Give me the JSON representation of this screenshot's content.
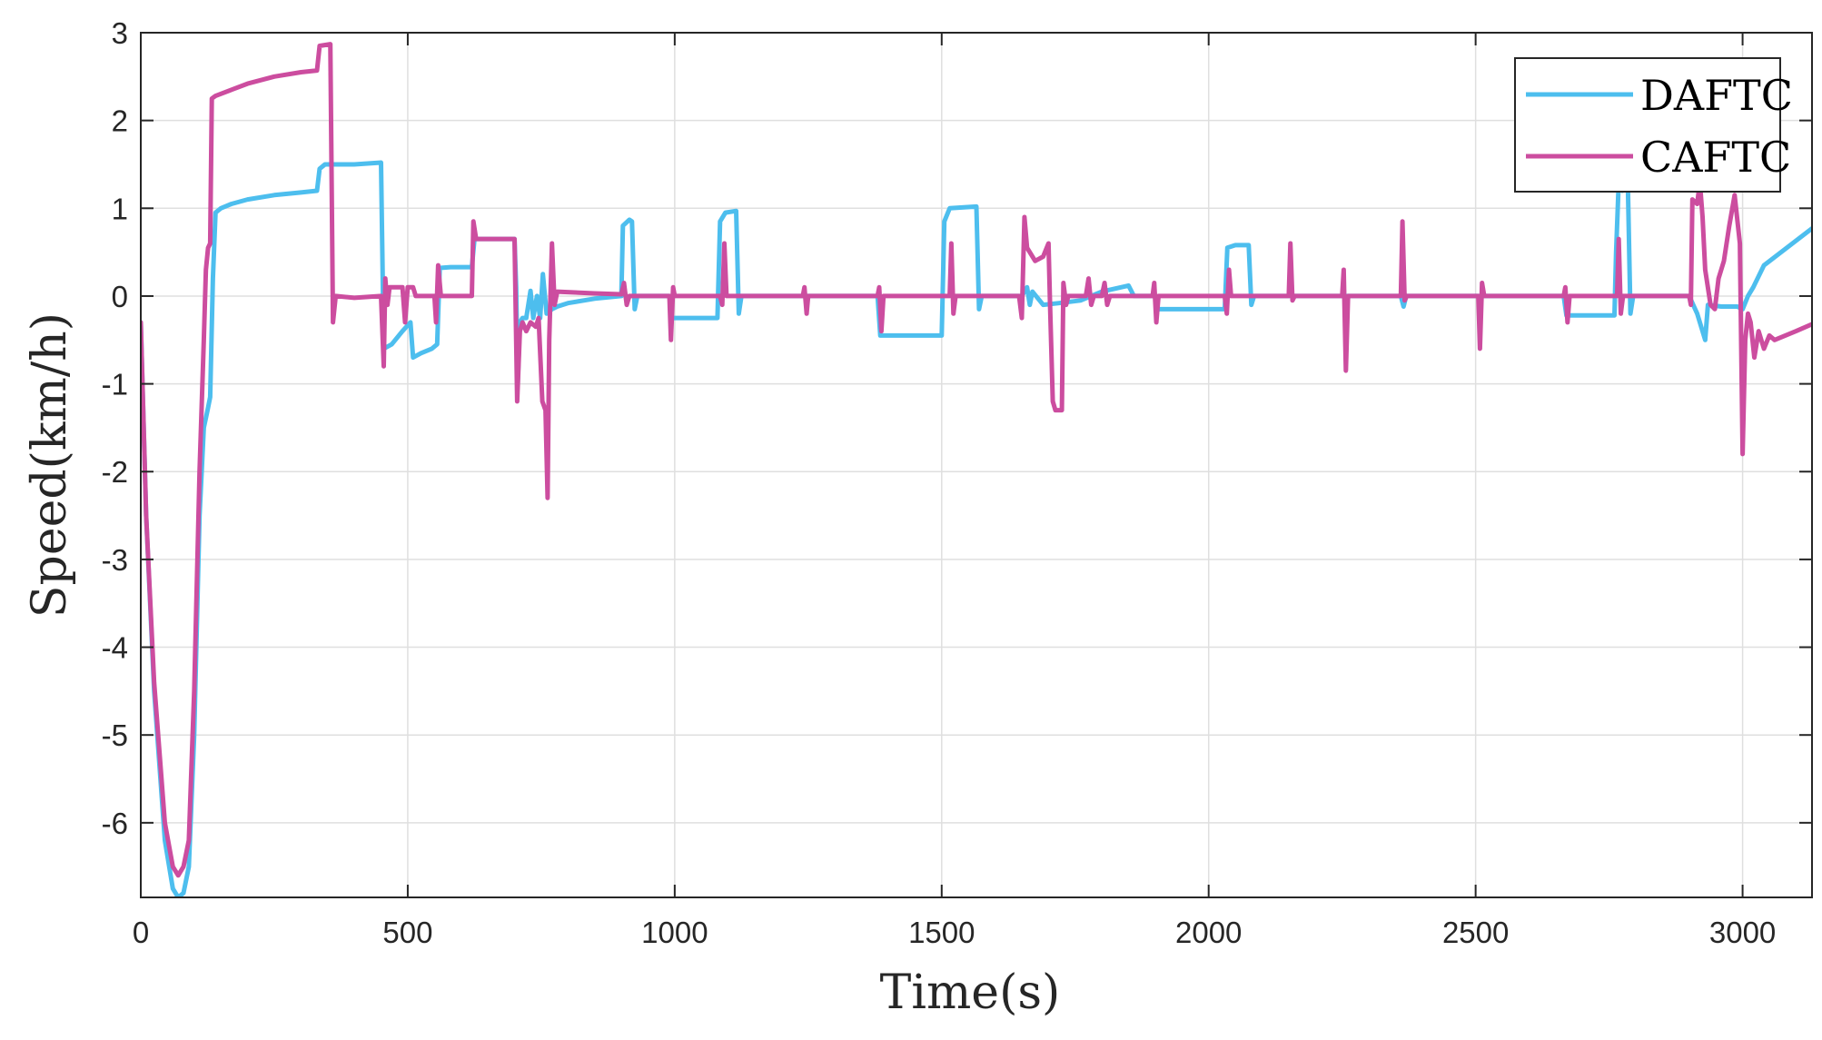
{
  "chart_data": {
    "type": "line",
    "title": "",
    "xlabel": "Time(s)",
    "ylabel": "Speed(km/h)",
    "xlim": [
      0,
      3130
    ],
    "ylim": [
      -6.85,
      3
    ],
    "xticks": [
      0,
      500,
      1000,
      1500,
      2000,
      2500,
      3000
    ],
    "yticks": [
      3,
      2,
      1,
      0,
      -1,
      -2,
      -3,
      -4,
      -5,
      -6
    ],
    "grid": true,
    "legend_position": "top-right",
    "series": [
      {
        "name": "DAFTC",
        "color": "#4dbeee",
        "points": [
          [
            0,
            -0.3
          ],
          [
            10,
            -2.5
          ],
          [
            25,
            -4.5
          ],
          [
            45,
            -6.2
          ],
          [
            60,
            -6.75
          ],
          [
            70,
            -6.85
          ],
          [
            80,
            -6.8
          ],
          [
            90,
            -6.5
          ],
          [
            100,
            -5
          ],
          [
            110,
            -2.5
          ],
          [
            118,
            -1.5
          ],
          [
            125,
            -1.3
          ],
          [
            130,
            -1.15
          ],
          [
            135,
            0.2
          ],
          [
            140,
            0.95
          ],
          [
            150,
            1.0
          ],
          [
            170,
            1.05
          ],
          [
            200,
            1.1
          ],
          [
            250,
            1.15
          ],
          [
            300,
            1.18
          ],
          [
            330,
            1.2
          ],
          [
            335,
            1.45
          ],
          [
            345,
            1.5
          ],
          [
            400,
            1.5
          ],
          [
            450,
            1.52
          ],
          [
            455,
            -0.6
          ],
          [
            470,
            -0.55
          ],
          [
            490,
            -0.4
          ],
          [
            505,
            -0.3
          ],
          [
            510,
            -0.7
          ],
          [
            525,
            -0.65
          ],
          [
            545,
            -0.6
          ],
          [
            555,
            -0.55
          ],
          [
            560,
            0.32
          ],
          [
            580,
            0.33
          ],
          [
            620,
            0.33
          ],
          [
            625,
            0.65
          ],
          [
            700,
            0.65
          ],
          [
            703,
            0.1
          ],
          [
            706,
            -1.0
          ],
          [
            710,
            -0.3
          ],
          [
            715,
            -0.25
          ],
          [
            722,
            -0.25
          ],
          [
            730,
            0.06
          ],
          [
            735,
            -0.25
          ],
          [
            742,
            0.0
          ],
          [
            748,
            -0.25
          ],
          [
            753,
            0.25
          ],
          [
            760,
            -0.2
          ],
          [
            770,
            -0.15
          ],
          [
            780,
            -0.12
          ],
          [
            800,
            -0.08
          ],
          [
            850,
            -0.03
          ],
          [
            900,
            0.0
          ],
          [
            903,
            0.8
          ],
          [
            915,
            0.87
          ],
          [
            920,
            0.85
          ],
          [
            925,
            -0.15
          ],
          [
            930,
            0.0
          ],
          [
            990,
            0.0
          ],
          [
            995,
            -0.25
          ],
          [
            1080,
            -0.25
          ],
          [
            1085,
            0.85
          ],
          [
            1095,
            0.95
          ],
          [
            1115,
            0.97
          ],
          [
            1120,
            -0.2
          ],
          [
            1125,
            0.0
          ],
          [
            1380,
            0.0
          ],
          [
            1385,
            -0.45
          ],
          [
            1500,
            -0.45
          ],
          [
            1505,
            0.85
          ],
          [
            1515,
            1.0
          ],
          [
            1565,
            1.02
          ],
          [
            1570,
            -0.15
          ],
          [
            1575,
            0.0
          ],
          [
            1650,
            0.0
          ],
          [
            1660,
            0.1
          ],
          [
            1665,
            -0.1
          ],
          [
            1670,
            0.05
          ],
          [
            1690,
            -0.1
          ],
          [
            1720,
            -0.08
          ],
          [
            1760,
            -0.05
          ],
          [
            1800,
            0.05
          ],
          [
            1850,
            0.12
          ],
          [
            1860,
            0.0
          ],
          [
            1900,
            0.0
          ],
          [
            1905,
            -0.15
          ],
          [
            2030,
            -0.15
          ],
          [
            2035,
            0.55
          ],
          [
            2050,
            0.58
          ],
          [
            2075,
            0.58
          ],
          [
            2080,
            -0.1
          ],
          [
            2085,
            0.0
          ],
          [
            2290,
            0.0
          ],
          [
            2300,
            0.0
          ],
          [
            2360,
            0.0
          ],
          [
            2365,
            -0.12
          ],
          [
            2370,
            0.0
          ],
          [
            2665,
            0.0
          ],
          [
            2670,
            -0.22
          ],
          [
            2760,
            -0.22
          ],
          [
            2763,
            0.5
          ],
          [
            2768,
            1.3
          ],
          [
            2775,
            1.2
          ],
          [
            2785,
            1.3
          ],
          [
            2790,
            -0.2
          ],
          [
            2795,
            0.0
          ],
          [
            2900,
            0.0
          ],
          [
            2915,
            -0.2
          ],
          [
            2930,
            -0.5
          ],
          [
            2935,
            -0.1
          ],
          [
            2960,
            -0.12
          ],
          [
            2990,
            -0.12
          ],
          [
            3000,
            -0.15
          ],
          [
            3010,
            0.0
          ],
          [
            3020,
            0.1
          ],
          [
            3040,
            0.35
          ],
          [
            3130,
            0.77
          ]
        ]
      },
      {
        "name": "CAFTC",
        "color": "#cc4d9f",
        "points": [
          [
            0,
            -0.3
          ],
          [
            10,
            -2.5
          ],
          [
            25,
            -4.4
          ],
          [
            45,
            -6.0
          ],
          [
            60,
            -6.5
          ],
          [
            70,
            -6.6
          ],
          [
            80,
            -6.5
          ],
          [
            90,
            -6.2
          ],
          [
            100,
            -4.5
          ],
          [
            110,
            -2
          ],
          [
            118,
            -0.5
          ],
          [
            122,
            0.3
          ],
          [
            126,
            0.55
          ],
          [
            130,
            0.6
          ],
          [
            133,
            2.25
          ],
          [
            140,
            2.28
          ],
          [
            170,
            2.35
          ],
          [
            200,
            2.42
          ],
          [
            250,
            2.5
          ],
          [
            300,
            2.55
          ],
          [
            330,
            2.57
          ],
          [
            335,
            2.85
          ],
          [
            355,
            2.87
          ],
          [
            360,
            -0.3
          ],
          [
            365,
            0.0
          ],
          [
            400,
            -0.02
          ],
          [
            450,
            0.0
          ],
          [
            455,
            -0.8
          ],
          [
            458,
            0.2
          ],
          [
            462,
            -0.1
          ],
          [
            466,
            0.1
          ],
          [
            490,
            0.1
          ],
          [
            495,
            -0.3
          ],
          [
            500,
            0.1
          ],
          [
            510,
            0.1
          ],
          [
            515,
            0.0
          ],
          [
            550,
            0.0
          ],
          [
            553,
            -0.3
          ],
          [
            557,
            0.35
          ],
          [
            562,
            0.0
          ],
          [
            620,
            0.0
          ],
          [
            623,
            0.85
          ],
          [
            628,
            0.65
          ],
          [
            690,
            0.65
          ],
          [
            700,
            0.65
          ],
          [
            705,
            -1.2
          ],
          [
            710,
            -0.4
          ],
          [
            715,
            -0.3
          ],
          [
            722,
            -0.4
          ],
          [
            730,
            -0.3
          ],
          [
            740,
            -0.35
          ],
          [
            745,
            -0.25
          ],
          [
            752,
            -1.2
          ],
          [
            758,
            -1.3
          ],
          [
            762,
            -2.3
          ],
          [
            765,
            -0.5
          ],
          [
            770,
            0.6
          ],
          [
            775,
            -0.1
          ],
          [
            780,
            0.05
          ],
          [
            850,
            0.03
          ],
          [
            900,
            0.02
          ],
          [
            905,
            0.15
          ],
          [
            910,
            -0.1
          ],
          [
            915,
            0.0
          ],
          [
            990,
            0.0
          ],
          [
            993,
            -0.5
          ],
          [
            997,
            0.1
          ],
          [
            1000,
            0.0
          ],
          [
            1085,
            0.0
          ],
          [
            1089,
            -0.1
          ],
          [
            1093,
            0.6
          ],
          [
            1097,
            0.0
          ],
          [
            1240,
            0.0
          ],
          [
            1243,
            0.1
          ],
          [
            1247,
            -0.2
          ],
          [
            1250,
            0.0
          ],
          [
            1380,
            0.0
          ],
          [
            1383,
            0.1
          ],
          [
            1387,
            -0.4
          ],
          [
            1391,
            0.0
          ],
          [
            1515,
            0.0
          ],
          [
            1518,
            0.6
          ],
          [
            1522,
            -0.2
          ],
          [
            1526,
            0.0
          ],
          [
            1645,
            0.0
          ],
          [
            1650,
            -0.25
          ],
          [
            1655,
            0.9
          ],
          [
            1660,
            0.55
          ],
          [
            1675,
            0.4
          ],
          [
            1690,
            0.45
          ],
          [
            1700,
            0.6
          ],
          [
            1703,
            -0.1
          ],
          [
            1708,
            -1.2
          ],
          [
            1713,
            -1.3
          ],
          [
            1725,
            -1.3
          ],
          [
            1728,
            0.15
          ],
          [
            1733,
            -0.1
          ],
          [
            1737,
            0.0
          ],
          [
            1770,
            0.0
          ],
          [
            1775,
            0.2
          ],
          [
            1780,
            -0.1
          ],
          [
            1785,
            0.0
          ],
          [
            1800,
            0.0
          ],
          [
            1805,
            0.15
          ],
          [
            1810,
            -0.1
          ],
          [
            1815,
            0.0
          ],
          [
            1895,
            0.0
          ],
          [
            1898,
            0.15
          ],
          [
            1902,
            -0.3
          ],
          [
            1906,
            0.0
          ],
          [
            2030,
            0.0
          ],
          [
            2034,
            -0.2
          ],
          [
            2038,
            0.3
          ],
          [
            2042,
            0.0
          ],
          [
            2150,
            0.0
          ],
          [
            2153,
            0.6
          ],
          [
            2157,
            -0.05
          ],
          [
            2161,
            0.0
          ],
          [
            2250,
            0.0
          ],
          [
            2253,
            0.3
          ],
          [
            2257,
            -0.85
          ],
          [
            2261,
            0.0
          ],
          [
            2360,
            0.0
          ],
          [
            2363,
            0.85
          ],
          [
            2367,
            -0.05
          ],
          [
            2371,
            0.0
          ],
          [
            2505,
            0.0
          ],
          [
            2508,
            -0.6
          ],
          [
            2512,
            0.15
          ],
          [
            2516,
            0.0
          ],
          [
            2665,
            0.0
          ],
          [
            2668,
            0.1
          ],
          [
            2672,
            -0.3
          ],
          [
            2676,
            0.0
          ],
          [
            2765,
            0.0
          ],
          [
            2768,
            0.65
          ],
          [
            2772,
            -0.2
          ],
          [
            2776,
            0.0
          ],
          [
            2900,
            0.0
          ],
          [
            2903,
            -0.1
          ],
          [
            2906,
            1.1
          ],
          [
            2915,
            1.05
          ],
          [
            2920,
            1.3
          ],
          [
            2925,
            0.9
          ],
          [
            2930,
            0.3
          ],
          [
            2940,
            -0.1
          ],
          [
            2948,
            -0.15
          ],
          [
            2955,
            0.2
          ],
          [
            2965,
            0.4
          ],
          [
            2975,
            0.8
          ],
          [
            2985,
            1.15
          ],
          [
            2995,
            0.6
          ],
          [
            3000,
            -1.8
          ],
          [
            3005,
            -0.5
          ],
          [
            3010,
            -0.2
          ],
          [
            3015,
            -0.3
          ],
          [
            3022,
            -0.7
          ],
          [
            3030,
            -0.4
          ],
          [
            3040,
            -0.6
          ],
          [
            3050,
            -0.45
          ],
          [
            3060,
            -0.5
          ],
          [
            3080,
            -0.45
          ],
          [
            3100,
            -0.4
          ],
          [
            3130,
            -0.32
          ]
        ]
      }
    ]
  }
}
